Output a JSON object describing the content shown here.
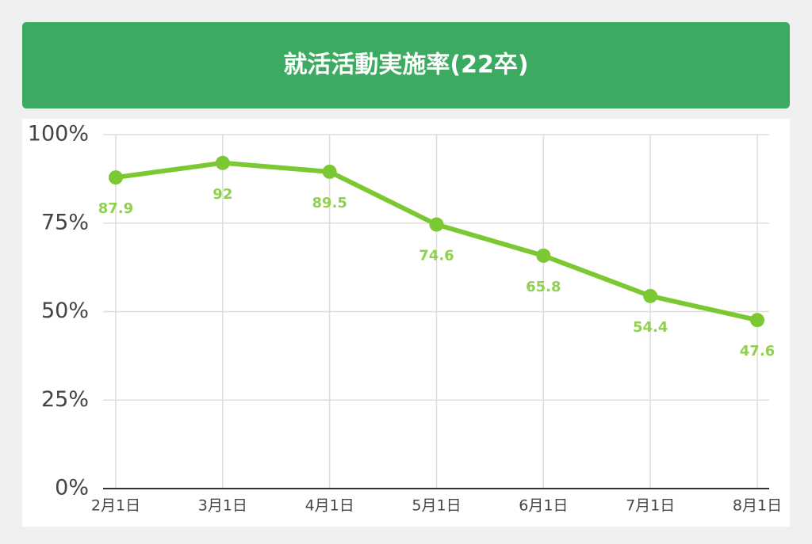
{
  "chart_data": {
    "type": "line",
    "title": "就活活動実施率(22卒)",
    "categories": [
      "2月1日",
      "3月1日",
      "4月1日",
      "5月1日",
      "6月1日",
      "7月1日",
      "8月1日"
    ],
    "series": [
      {
        "name": "実施率",
        "color": "#7cc832",
        "values": [
          87.9,
          92,
          89.5,
          74.6,
          65.8,
          54.4,
          47.6
        ]
      }
    ],
    "ylim": [
      0,
      100
    ],
    "yticks": [
      {
        "value": 0,
        "label": "0%"
      },
      {
        "value": 25,
        "label": "25%"
      },
      {
        "value": 50,
        "label": "50%"
      },
      {
        "value": 75,
        "label": "75%"
      },
      {
        "value": 100,
        "label": "100%"
      }
    ],
    "grid": true
  }
}
